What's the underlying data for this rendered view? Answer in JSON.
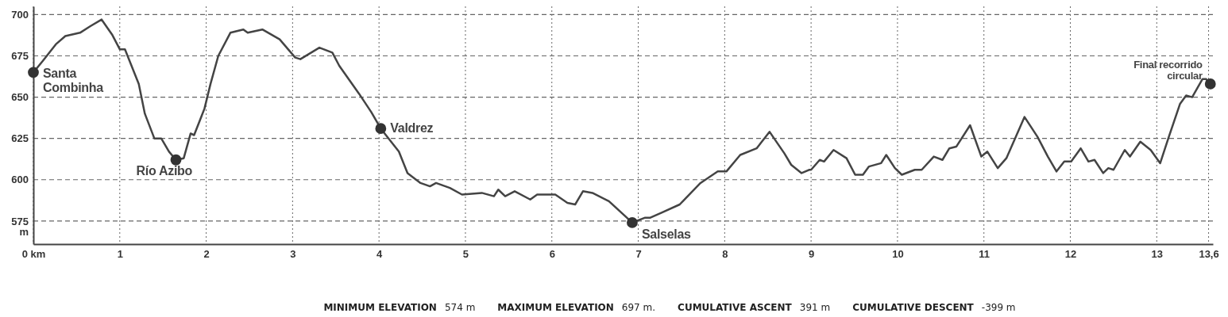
{
  "chart_data": {
    "type": "line",
    "ylabel": "m",
    "xlim": [
      0,
      13.65
    ],
    "ylim": [
      561,
      705
    ],
    "xticks": [
      {
        "value": 0,
        "label": "0 km"
      },
      1,
      2,
      3,
      4,
      5,
      6,
      7,
      8,
      9,
      10,
      11,
      12,
      13,
      {
        "value": 13.6,
        "label": "13,6"
      }
    ],
    "yticks": [
      575,
      600,
      625,
      650,
      675,
      700
    ],
    "grid": true,
    "series": [
      {
        "color": "#444444",
        "x": [
          0,
          0.11,
          0.26,
          0.37,
          0.54,
          0.66,
          0.79,
          0.91,
          1.0,
          1.06,
          1.22,
          1.29,
          1.4,
          1.48,
          1.57,
          1.65,
          1.74,
          1.82,
          1.86,
          1.98,
          2.05,
          2.14,
          2.28,
          2.43,
          2.48,
          2.65,
          2.85,
          3.03,
          3.09,
          3.31,
          3.46,
          3.54,
          3.77,
          3.91,
          4.02,
          4.23,
          4.33,
          4.48,
          4.59,
          4.66,
          4.82,
          4.96,
          5.19,
          5.33,
          5.38,
          5.46,
          5.57,
          5.75,
          5.83,
          6.04,
          6.18,
          6.27,
          6.36,
          6.47,
          6.66,
          6.93,
          7.08,
          7.14,
          7.27,
          7.48,
          7.72,
          7.92,
          8.02,
          8.18,
          8.37,
          8.43,
          8.52,
          8.69,
          8.77,
          8.89,
          8.98,
          9.0,
          9.1,
          9.15,
          9.26,
          9.41,
          9.51,
          9.6,
          9.67,
          9.81,
          9.87,
          9.97,
          10.05,
          10.2,
          10.28,
          10.42,
          10.52,
          10.6,
          10.68,
          10.84,
          10.97,
          11.04,
          11.16,
          11.26,
          11.47,
          11.62,
          11.74,
          11.84,
          11.93,
          12.01,
          12.12,
          12.21,
          12.28,
          12.38,
          12.44,
          12.5,
          12.63,
          12.69,
          12.81,
          12.93,
          13.04,
          13.14,
          13.27,
          13.34,
          13.41,
          13.53,
          13.57,
          13.62
        ],
        "values": [
          665,
          672,
          682,
          687,
          689,
          693,
          697,
          688,
          679,
          679,
          658,
          640,
          625,
          625,
          617,
          612,
          613,
          628,
          627,
          643,
          658,
          675,
          689,
          691,
          689,
          691,
          685,
          674,
          673,
          680,
          677,
          669,
          652,
          641,
          631,
          617,
          604,
          598,
          596,
          598,
          595,
          591,
          592,
          590,
          594,
          590,
          593,
          588,
          591,
          591,
          586,
          585,
          593,
          592,
          587,
          574,
          577,
          577,
          580,
          585,
          598,
          605,
          605,
          615,
          619,
          623,
          629,
          616,
          609,
          604,
          606,
          606,
          612,
          611,
          618,
          613,
          603,
          603,
          608,
          610,
          615,
          607,
          603,
          606,
          606,
          614,
          612,
          619,
          620,
          633,
          614,
          617,
          607,
          613,
          638,
          626,
          614,
          605,
          611,
          611,
          619,
          611,
          612,
          604,
          607,
          606,
          618,
          614,
          623,
          618,
          610,
          626,
          646,
          651,
          650,
          661,
          661,
          658
        ]
      },
      {
        "type": "scatter",
        "color": "#333333",
        "marker": "circle",
        "x": [
          0,
          1.65,
          4.02,
          6.93,
          13.62
        ],
        "values": [
          665,
          612,
          631,
          574,
          658
        ]
      }
    ],
    "annotations": [
      {
        "text": "Santa Combinha",
        "x": 0,
        "y": 665
      },
      {
        "text": "Río Azibo",
        "x": 1.65,
        "y": 612
      },
      {
        "text": "Valdrez",
        "x": 4.02,
        "y": 631
      },
      {
        "text": "Salselas",
        "x": 6.93,
        "y": 574
      },
      {
        "text": "Final recorrido circular",
        "x": 13.62,
        "y": 658
      },
      "MINIMUM ELEVATION 574 m",
      "MAXIMUM ELEVATION 697 m.",
      "CUMULATIVE ASCENT 391 m",
      "CUMULATIVE DESCENT -399 m"
    ]
  }
}
